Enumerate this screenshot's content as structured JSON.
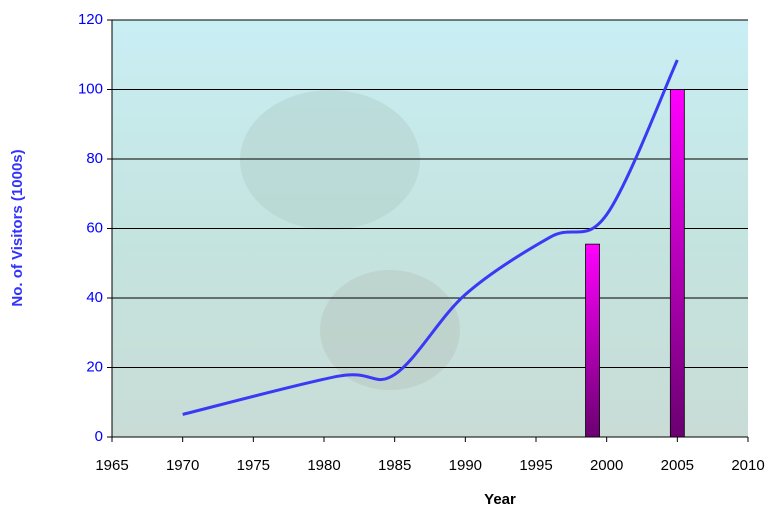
{
  "chart_data": {
    "type": "combo",
    "xlabel": "Year",
    "ylabel": "No. of Visitors (1000s)",
    "xlim": [
      1965,
      2010
    ],
    "xticks": [
      1965,
      1970,
      1975,
      1980,
      1985,
      1990,
      1995,
      2000,
      2005,
      2010
    ],
    "ylim": [
      0,
      120
    ],
    "yticks": [
      0,
      20,
      40,
      60,
      80,
      100,
      120
    ],
    "grid": true,
    "series": [
      {
        "type": "line",
        "color": "#3a3af5",
        "x": [
          1970,
          1981,
          1985,
          1990,
          1996,
          2000,
          2005
        ],
        "values": [
          6.5,
          17.5,
          18,
          41,
          57.5,
          64,
          108.5
        ]
      },
      {
        "type": "bar",
        "color": "#ff00ff",
        "x": [
          1999,
          2005
        ],
        "values": [
          55.5,
          100
        ]
      }
    ]
  }
}
